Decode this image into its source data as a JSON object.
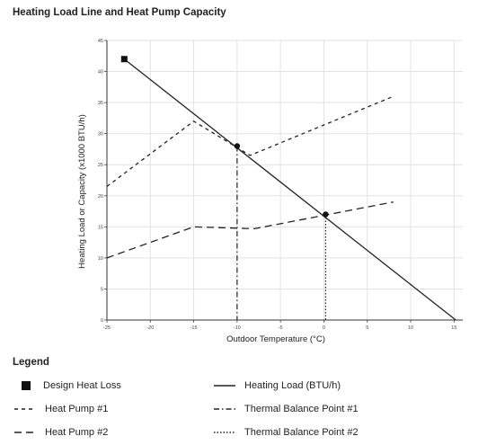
{
  "title": "Heating Load Line and Heat Pump Capacity",
  "chart_data": {
    "type": "line",
    "title": "Heating Load Line and Heat Pump Capacity",
    "xlabel": "Outdoor Temperature (°C)",
    "ylabel": "Heating Load or Capacity (x1000 BTU/h)",
    "xlim": [
      -25,
      16
    ],
    "ylim": [
      0,
      45
    ],
    "xticks": [
      -25,
      -20,
      -15,
      -10,
      -5,
      0,
      5,
      10,
      15
    ],
    "yticks": [
      0,
      5,
      10,
      15,
      20,
      25,
      30,
      35,
      40,
      45
    ],
    "grid": true,
    "series": [
      {
        "name": "Heating Load (BTU/h)",
        "style": "solid",
        "points": [
          [
            -23,
            42
          ],
          [
            15.2,
            0
          ]
        ]
      },
      {
        "name": "Heat Pump #1",
        "style": "dashed",
        "points": [
          [
            -25,
            21.5
          ],
          [
            -15,
            32
          ],
          [
            -8.5,
            26.5
          ],
          [
            8,
            36
          ]
        ]
      },
      {
        "name": "Heat Pump #2",
        "style": "longdash",
        "points": [
          [
            -25,
            10
          ],
          [
            -15,
            15
          ],
          [
            -8,
            14.7
          ],
          [
            8,
            19
          ]
        ]
      }
    ],
    "design_heat_loss": {
      "x": -23,
      "y": 42
    },
    "balance_points": [
      {
        "name": "Thermal Balance Point #1",
        "x": -10,
        "y": 28,
        "style": "dashdot"
      },
      {
        "name": "Thermal Balance Point #2",
        "x": 0.2,
        "y": 17,
        "style": "dotted"
      }
    ]
  },
  "legend": {
    "title": "Legend",
    "design_heat_loss": "Design Heat Loss",
    "heating_load": "Heating Load (BTU/h)",
    "heat_pump_1": "Heat Pump #1",
    "balance_point_1": "Thermal Balance Point #1",
    "heat_pump_2": "Heat Pump #2",
    "balance_point_2": "Thermal Balance Point #2"
  }
}
